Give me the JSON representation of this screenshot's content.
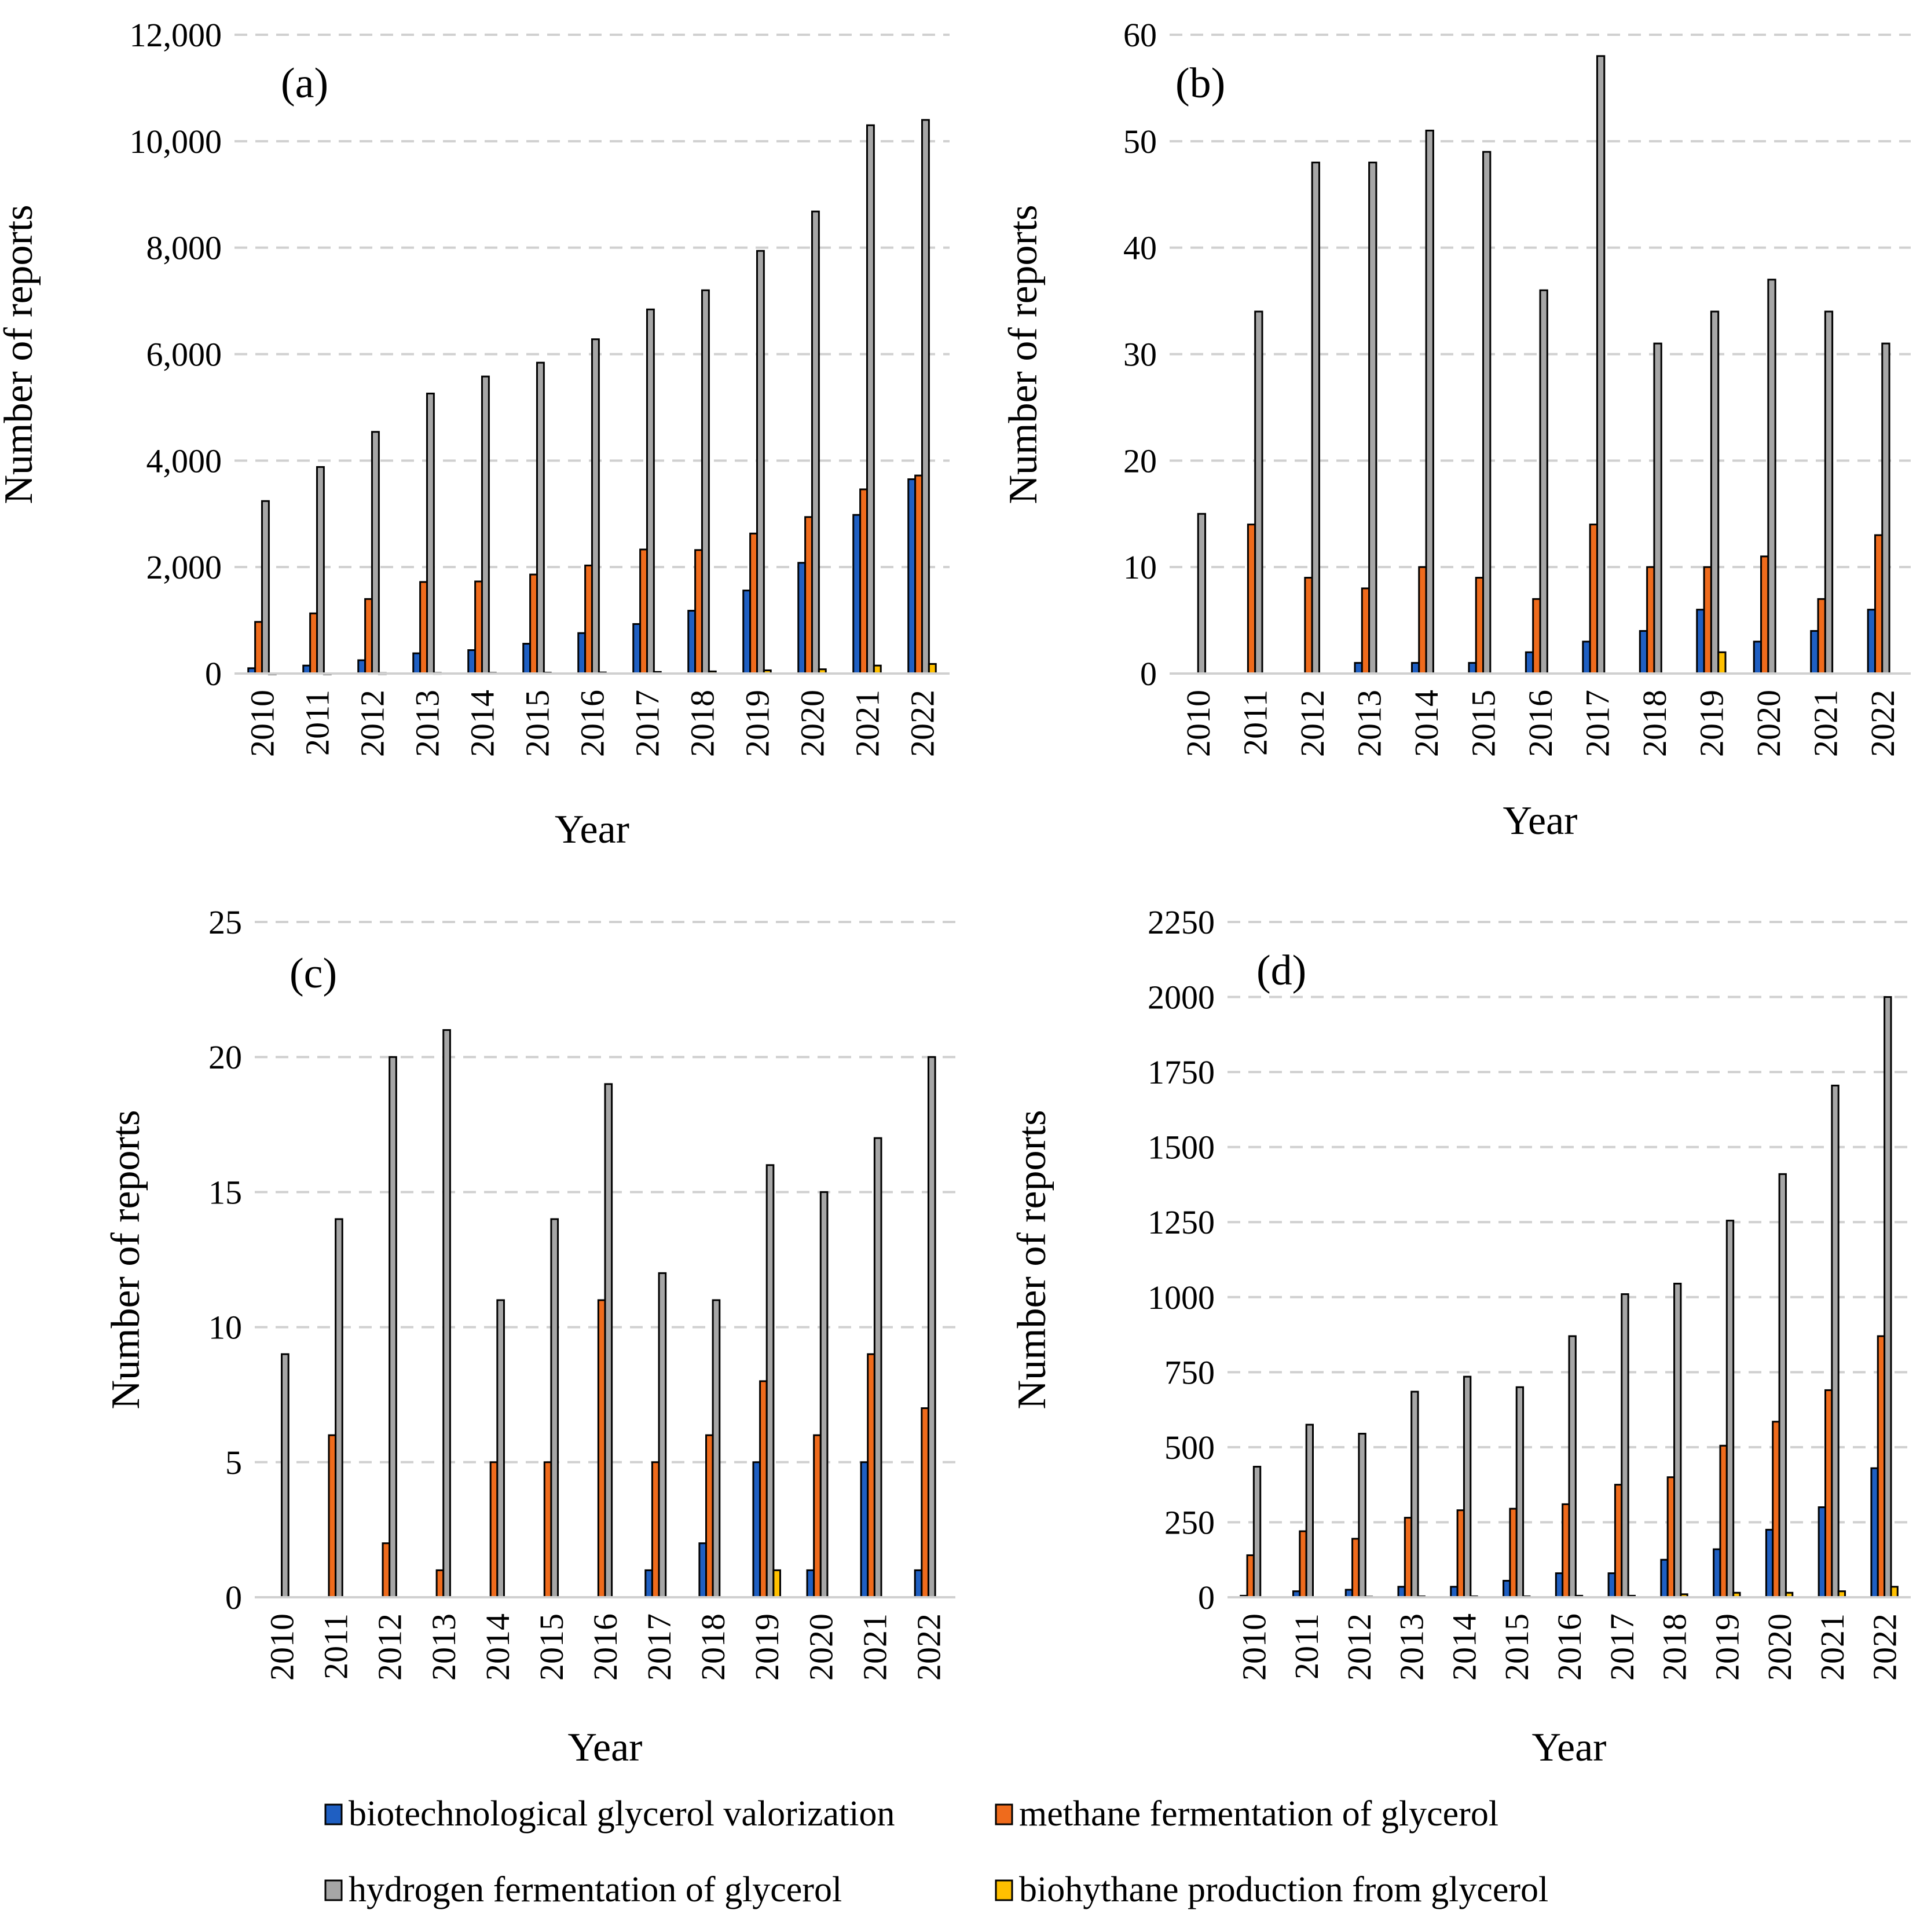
{
  "figure": {
    "legend": [
      {
        "name": "biotechnological glycerol valorization",
        "color": "#1f5fc2"
      },
      {
        "name": "methane fermentation of glycerol",
        "color": "#ef6b1c"
      },
      {
        "name": "hydrogen fermentation of glycerol",
        "color": "#a6a6a6"
      },
      {
        "name": "biohythane production from glycerol",
        "color": "#ffc000"
      }
    ]
  },
  "chart_data": [
    {
      "type": "bar",
      "panel": "(a)",
      "categories": [
        "2010",
        "2011",
        "2012",
        "2013",
        "2014",
        "2015",
        "2016",
        "2017",
        "2018",
        "2019",
        "2020",
        "2021",
        "2022"
      ],
      "xlabel": "Year",
      "ylabel": "Number of reports",
      "ylim": [
        0,
        12000
      ],
      "yticks": [
        0,
        2000,
        4000,
        6000,
        8000,
        10000,
        12000
      ],
      "ytick_labels": [
        "0",
        "2,000",
        "4,000",
        "6,000",
        "8,000",
        "10,000",
        "12,000"
      ],
      "grid": true,
      "series": [
        {
          "name": "biotechnological glycerol valorization",
          "values": [
            100,
            150,
            250,
            380,
            440,
            560,
            760,
            930,
            1180,
            1560,
            2080,
            2980,
            3650
          ]
        },
        {
          "name": "methane fermentation of glycerol",
          "values": [
            970,
            1130,
            1400,
            1720,
            1730,
            1860,
            2030,
            2330,
            2320,
            2630,
            2940,
            3460,
            3720
          ]
        },
        {
          "name": "hydrogen fermentation of glycerol",
          "values": [
            3240,
            3880,
            4540,
            5260,
            5580,
            5840,
            6280,
            6840,
            7200,
            7940,
            8680,
            10300,
            10400
          ]
        },
        {
          "name": "biohythane production from glycerol",
          "values": [
            5,
            5,
            8,
            10,
            12,
            15,
            20,
            30,
            40,
            60,
            80,
            150,
            180
          ]
        }
      ]
    },
    {
      "type": "bar",
      "panel": "(b)",
      "categories": [
        "2010",
        "2011",
        "2012",
        "2013",
        "2014",
        "2015",
        "2016",
        "2017",
        "2018",
        "2019",
        "2020",
        "2021",
        "2022"
      ],
      "xlabel": "Year",
      "ylabel": "Number of reports",
      "ylim": [
        0,
        60
      ],
      "yticks": [
        0,
        10,
        20,
        30,
        40,
        50,
        60
      ],
      "ytick_labels": [
        "0",
        "10",
        "20",
        "30",
        "40",
        "50",
        "60"
      ],
      "grid": true,
      "series": [
        {
          "name": "biotechnological glycerol valorization",
          "values": [
            0,
            0,
            0,
            1,
            1,
            1,
            2,
            3,
            4,
            6,
            3,
            4,
            6
          ]
        },
        {
          "name": "methane fermentation of glycerol",
          "values": [
            0,
            14,
            9,
            8,
            10,
            9,
            7,
            14,
            10,
            10,
            11,
            7,
            13
          ]
        },
        {
          "name": "hydrogen fermentation of glycerol",
          "values": [
            15,
            34,
            48,
            48,
            51,
            49,
            36,
            58,
            31,
            34,
            37,
            34,
            31
          ]
        },
        {
          "name": "biohythane production from glycerol",
          "values": [
            0,
            0,
            0,
            0,
            0,
            0,
            0,
            0,
            0,
            2,
            0,
            0,
            0
          ]
        }
      ]
    },
    {
      "type": "bar",
      "panel": "(c)",
      "categories": [
        "2010",
        "2011",
        "2012",
        "2013",
        "2014",
        "2015",
        "2016",
        "2017",
        "2018",
        "2019",
        "2020",
        "2021",
        "2022"
      ],
      "xlabel": "Year",
      "ylabel": "Number of reports",
      "ylim": [
        0,
        25
      ],
      "yticks": [
        0,
        5,
        10,
        15,
        20,
        25
      ],
      "ytick_labels": [
        "0",
        "5",
        "10",
        "15",
        "20",
        "25"
      ],
      "grid": true,
      "series": [
        {
          "name": "biotechnological glycerol valorization",
          "values": [
            0,
            0,
            0,
            0,
            0,
            0,
            0,
            1,
            2,
            5,
            1,
            5,
            1
          ]
        },
        {
          "name": "methane fermentation of glycerol",
          "values": [
            0,
            6,
            2,
            1,
            5,
            5,
            11,
            5,
            6,
            8,
            6,
            9,
            7
          ]
        },
        {
          "name": "hydrogen fermentation of glycerol",
          "values": [
            9,
            14,
            20,
            21,
            11,
            14,
            19,
            12,
            11,
            16,
            15,
            17,
            20
          ]
        },
        {
          "name": "biohythane production from glycerol",
          "values": [
            0,
            0,
            0,
            0,
            0,
            0,
            0,
            0,
            0,
            1,
            0,
            0,
            0
          ]
        }
      ]
    },
    {
      "type": "bar",
      "panel": "(d)",
      "categories": [
        "2010",
        "2011",
        "2012",
        "2013",
        "2014",
        "2015",
        "2016",
        "2017",
        "2018",
        "2019",
        "2020",
        "2021",
        "2022"
      ],
      "xlabel": "Year",
      "ylabel": "Number of reports",
      "ylim": [
        0,
        2250
      ],
      "yticks": [
        0,
        250,
        500,
        750,
        1000,
        1250,
        1500,
        1750,
        2000,
        2250
      ],
      "ytick_labels": [
        "0",
        "250",
        "500",
        "750",
        "1000",
        "1250",
        "1500",
        "1750",
        "2000",
        "2250"
      ],
      "grid": true,
      "series": [
        {
          "name": "biotechnological glycerol valorization",
          "values": [
            5,
            20,
            25,
            35,
            35,
            55,
            80,
            80,
            125,
            160,
            225,
            300,
            430
          ]
        },
        {
          "name": "methane fermentation of glycerol",
          "values": [
            140,
            220,
            195,
            265,
            290,
            295,
            310,
            375,
            400,
            505,
            585,
            690,
            870
          ]
        },
        {
          "name": "hydrogen fermentation of glycerol",
          "values": [
            435,
            575,
            545,
            685,
            735,
            700,
            870,
            1010,
            1045,
            1255,
            1410,
            1705,
            2000
          ]
        },
        {
          "name": "biohythane production from glycerol",
          "values": [
            0,
            0,
            2,
            3,
            3,
            3,
            5,
            5,
            10,
            15,
            15,
            20,
            35
          ]
        }
      ]
    }
  ]
}
